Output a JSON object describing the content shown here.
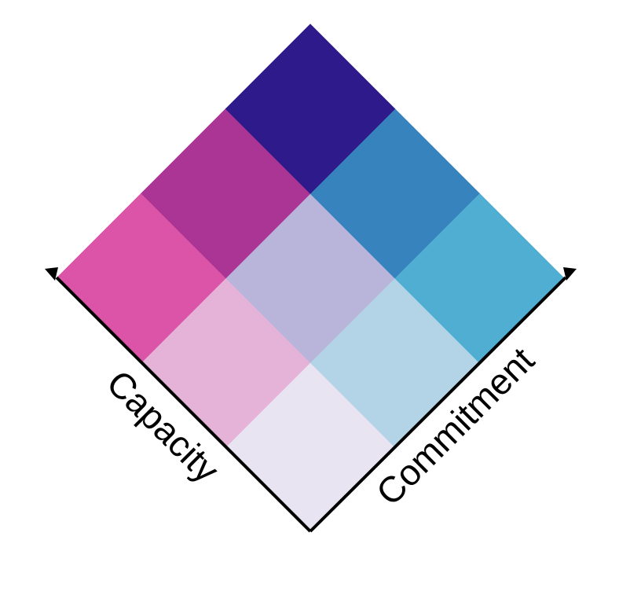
{
  "legend": {
    "axes": {
      "left": {
        "label": "Capacity"
      },
      "right": {
        "label": "Commitment"
      }
    },
    "grid": {
      "rows": 3,
      "cols": 3,
      "colors": [
        [
          "#e8e4f2",
          "#b3d3e7",
          "#4faed1"
        ],
        [
          "#e5b3d8",
          "#b8b4da",
          "#3783bd"
        ],
        [
          "#dc54a8",
          "#ab3595",
          "#2e1a8a"
        ]
      ]
    },
    "axis_color": "#000000"
  }
}
